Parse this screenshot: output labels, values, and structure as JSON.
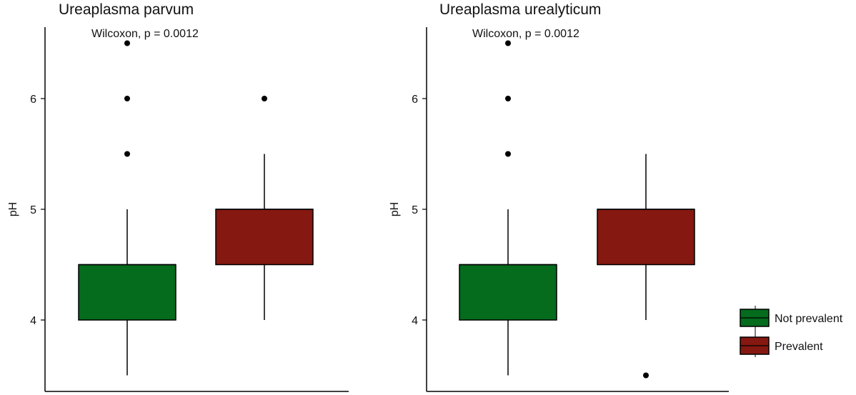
{
  "chart_data": [
    {
      "type": "box",
      "title": "Ureaplasma parvum",
      "annotation": "Wilcoxon, p = 0.0012",
      "xlabel": "",
      "ylabel": "pH",
      "ylim": [
        3.35,
        6.65
      ],
      "yticks": [
        4,
        5,
        6
      ],
      "ytick_labels": [
        "4",
        "5",
        "6"
      ],
      "categories": [
        "Not prevalent",
        "Prevalent"
      ],
      "series": [
        {
          "name": "Not prevalent",
          "color": "#056b1d",
          "q1": 4.0,
          "median": 4.5,
          "q3": 4.5,
          "whisker_low": 3.5,
          "whisker_high": 5.0,
          "outliers": [
            5.5,
            6.0,
            6.5
          ]
        },
        {
          "name": "Prevalent",
          "color": "#851810",
          "q1": 4.5,
          "median": 5.0,
          "q3": 5.0,
          "whisker_low": 4.0,
          "whisker_high": 5.5,
          "outliers": [
            6.0
          ]
        }
      ]
    },
    {
      "type": "box",
      "title": "Ureaplasma urealyticum",
      "annotation": "Wilcoxon, p = 0.0012",
      "xlabel": "",
      "ylabel": "pH",
      "ylim": [
        3.35,
        6.65
      ],
      "yticks": [
        4,
        5,
        6
      ],
      "ytick_labels": [
        "4",
        "5",
        "6"
      ],
      "categories": [
        "Not prevalent",
        "Prevalent"
      ],
      "series": [
        {
          "name": "Not prevalent",
          "color": "#056b1d",
          "q1": 4.0,
          "median": 4.5,
          "q3": 4.5,
          "whisker_low": 3.5,
          "whisker_high": 5.0,
          "outliers": [
            5.5,
            6.0,
            6.5
          ]
        },
        {
          "name": "Prevalent",
          "color": "#851810",
          "q1": 4.5,
          "median": 5.0,
          "q3": 5.0,
          "whisker_low": 4.0,
          "whisker_high": 5.5,
          "outliers": [
            3.5
          ]
        }
      ]
    }
  ],
  "legend": {
    "placement": "bottom-right",
    "items": [
      {
        "label": "Not prevalent",
        "color": "#056b1d"
      },
      {
        "label": "Prevalent",
        "color": "#851810"
      }
    ]
  }
}
